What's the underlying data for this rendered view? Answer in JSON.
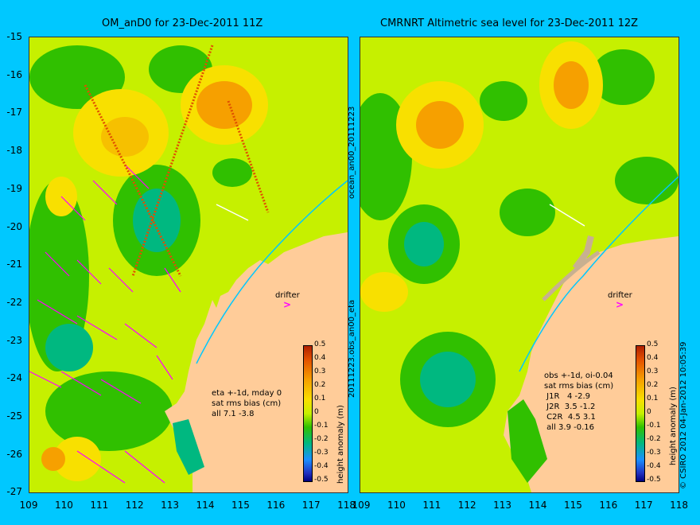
{
  "left_panel": {
    "title": "OM_anD0 for 23-Dec-2011 11Z",
    "stats": "eta +-1d, mday 0\nsat rms bias (cm)\nall 7.1 -3.8",
    "drifter_label": "drifter"
  },
  "right_panel": {
    "title": "CMRNRT Altimetric sea level  for 23-Dec-2011 12Z",
    "stats": "obs +-1d, oi-0.04\nsat rms bias (cm)\n J1R   4 -2.9\n J2R  3.5 -1.2\n C2R  4.5 3.1\n all 3.9 -0.16",
    "drifter_label": "drifter"
  },
  "side_label_top": "ocean_an00_20111223",
  "side_label_bottom": "20111223.obs_an00_eta",
  "credit": "© CSIRO 2012  04-Jan-2012 10:05:39",
  "colorbar": {
    "label": "height anomaly (m)",
    "ticks": [
      "0.5",
      "0.4",
      "0.3",
      "0.2",
      "0.1",
      "0",
      "-0.1",
      "-0.2",
      "-0.3",
      "-0.4",
      "-0.5"
    ]
  },
  "y_ticks": [
    "-15",
    "-16",
    "-17",
    "-18",
    "-19",
    "-20",
    "-21",
    "-22",
    "-23",
    "-24",
    "-25",
    "-26",
    "-27"
  ],
  "x_ticks_left": [
    "109",
    "110",
    "111",
    "112",
    "113",
    "114",
    "115",
    "116",
    "117",
    "118"
  ],
  "x_ticks_right": [
    "109",
    "110",
    "111",
    "112",
    "113",
    "114",
    "115",
    "116",
    "117",
    "118"
  ],
  "colors": {
    "background": "#00c8ff",
    "land": "#ffcc99",
    "arrow": "#ff00ff"
  }
}
